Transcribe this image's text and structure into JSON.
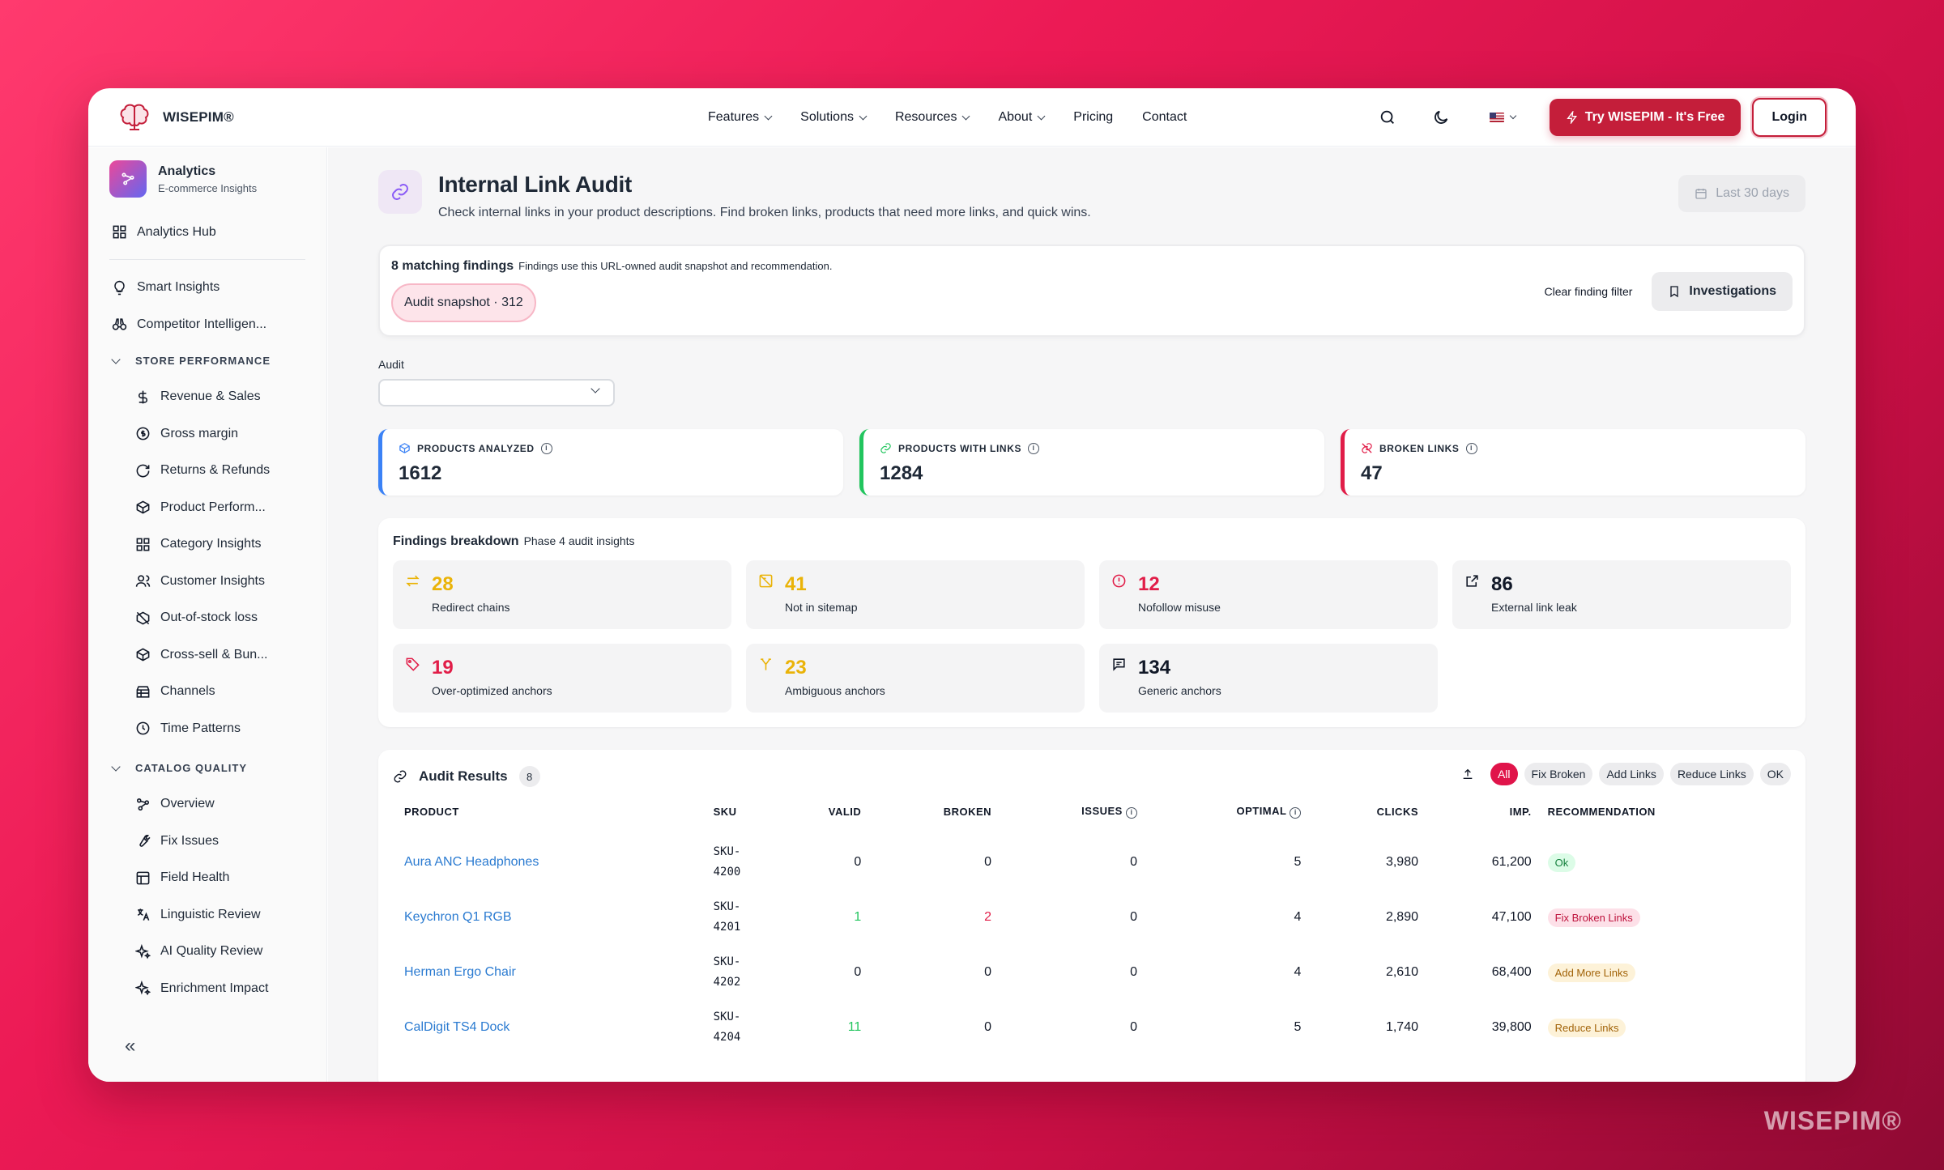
{
  "brand": {
    "name": "WISEPIM®",
    "watermark": "WISEPIM®"
  },
  "nav": {
    "items": [
      {
        "label": "Features",
        "dropdown": true
      },
      {
        "label": "Solutions",
        "dropdown": true
      },
      {
        "label": "Resources",
        "dropdown": true
      },
      {
        "label": "About",
        "dropdown": true
      },
      {
        "label": "Pricing",
        "dropdown": false
      },
      {
        "label": "Contact",
        "dropdown": false
      }
    ],
    "try_label": "Try WISEPIM - It's Free",
    "login_label": "Login"
  },
  "sidebar": {
    "app_title": "Analytics",
    "app_subtitle": "E-commerce Insights",
    "hub": "Analytics Hub",
    "top_items": [
      "Smart Insights",
      "Competitor Intelligen..."
    ],
    "section1": "STORE PERFORMANCE",
    "store_items": [
      "Revenue & Sales",
      "Gross margin",
      "Returns & Refunds",
      "Product Perform...",
      "Category Insights",
      "Customer Insights",
      "Out-of-stock loss",
      "Cross-sell & Bun...",
      "Channels",
      "Time Patterns"
    ],
    "section2": "CATALOG QUALITY",
    "catalog_items": [
      "Overview",
      "Fix Issues",
      "Field Health",
      "Linguistic Review",
      "AI Quality Review",
      "Enrichment Impact"
    ],
    "collapse": "«"
  },
  "page": {
    "title": "Internal Link Audit",
    "description": "Check internal links in your product descriptions. Find broken links, products that need more links, and quick wins.",
    "date_range": "Last 30 days"
  },
  "findings": {
    "count_label": "8 matching findings",
    "note": "Findings use this URL-owned audit snapshot and recommendation.",
    "snapshot": "Audit snapshot · 312",
    "clear": "Clear finding filter",
    "investigations": "Investigations"
  },
  "audit": {
    "label": "Audit",
    "value": ""
  },
  "kpis": [
    {
      "label": "PRODUCTS ANALYZED",
      "value": "1612",
      "color": "#3b82f6"
    },
    {
      "label": "PRODUCTS WITH LINKS",
      "value": "1284",
      "color": "#22c55e"
    },
    {
      "label": "BROKEN LINKS",
      "value": "47",
      "color": "#e11d48"
    }
  ],
  "breakdown": {
    "title": "Findings breakdown",
    "subtitle": "Phase 4 audit insights",
    "cards": [
      {
        "value": "28",
        "label": "Redirect chains",
        "color": "#eab308"
      },
      {
        "value": "41",
        "label": "Not in sitemap",
        "color": "#eab308"
      },
      {
        "value": "12",
        "label": "Nofollow misuse",
        "color": "#e11d48"
      },
      {
        "value": "86",
        "label": "External link leak",
        "color": "#111827"
      },
      {
        "value": "19",
        "label": "Over-optimized anchors",
        "color": "#e11d48"
      },
      {
        "value": "23",
        "label": "Ambiguous anchors",
        "color": "#eab308"
      },
      {
        "value": "134",
        "label": "Generic anchors",
        "color": "#111827"
      }
    ]
  },
  "results": {
    "title": "Audit Results",
    "count": "8",
    "filters": [
      "All",
      "Fix Broken",
      "Add Links",
      "Reduce Links",
      "OK"
    ],
    "columns": [
      "PRODUCT",
      "SKU",
      "VALID",
      "BROKEN",
      "ISSUES",
      "OPTIMAL",
      "CLICKS",
      "IMP.",
      "RECOMMENDATION"
    ],
    "rows": [
      {
        "product": "Aura ANC Headphones",
        "sku": "SKU-\n4200",
        "valid": "0",
        "broken": "0",
        "issues": "0",
        "optimal": "5",
        "clicks": "3,980",
        "imp": "61,200",
        "rec": "Ok"
      },
      {
        "product": "Keychron Q1 RGB",
        "sku": "SKU-\n4201",
        "valid": "1",
        "broken": "2",
        "issues": "0",
        "optimal": "4",
        "clicks": "2,890",
        "imp": "47,100",
        "rec": "Fix Broken Links"
      },
      {
        "product": "Herman Ergo Chair",
        "sku": "SKU-\n4202",
        "valid": "0",
        "broken": "0",
        "issues": "0",
        "optimal": "4",
        "clicks": "2,610",
        "imp": "68,400",
        "rec": "Add More Links"
      },
      {
        "product": "CalDigit TS4 Dock",
        "sku": "SKU-\n4204",
        "valid": "11",
        "broken": "0",
        "issues": "0",
        "optimal": "5",
        "clicks": "1,740",
        "imp": "39,800",
        "rec": "Reduce Links"
      }
    ]
  }
}
